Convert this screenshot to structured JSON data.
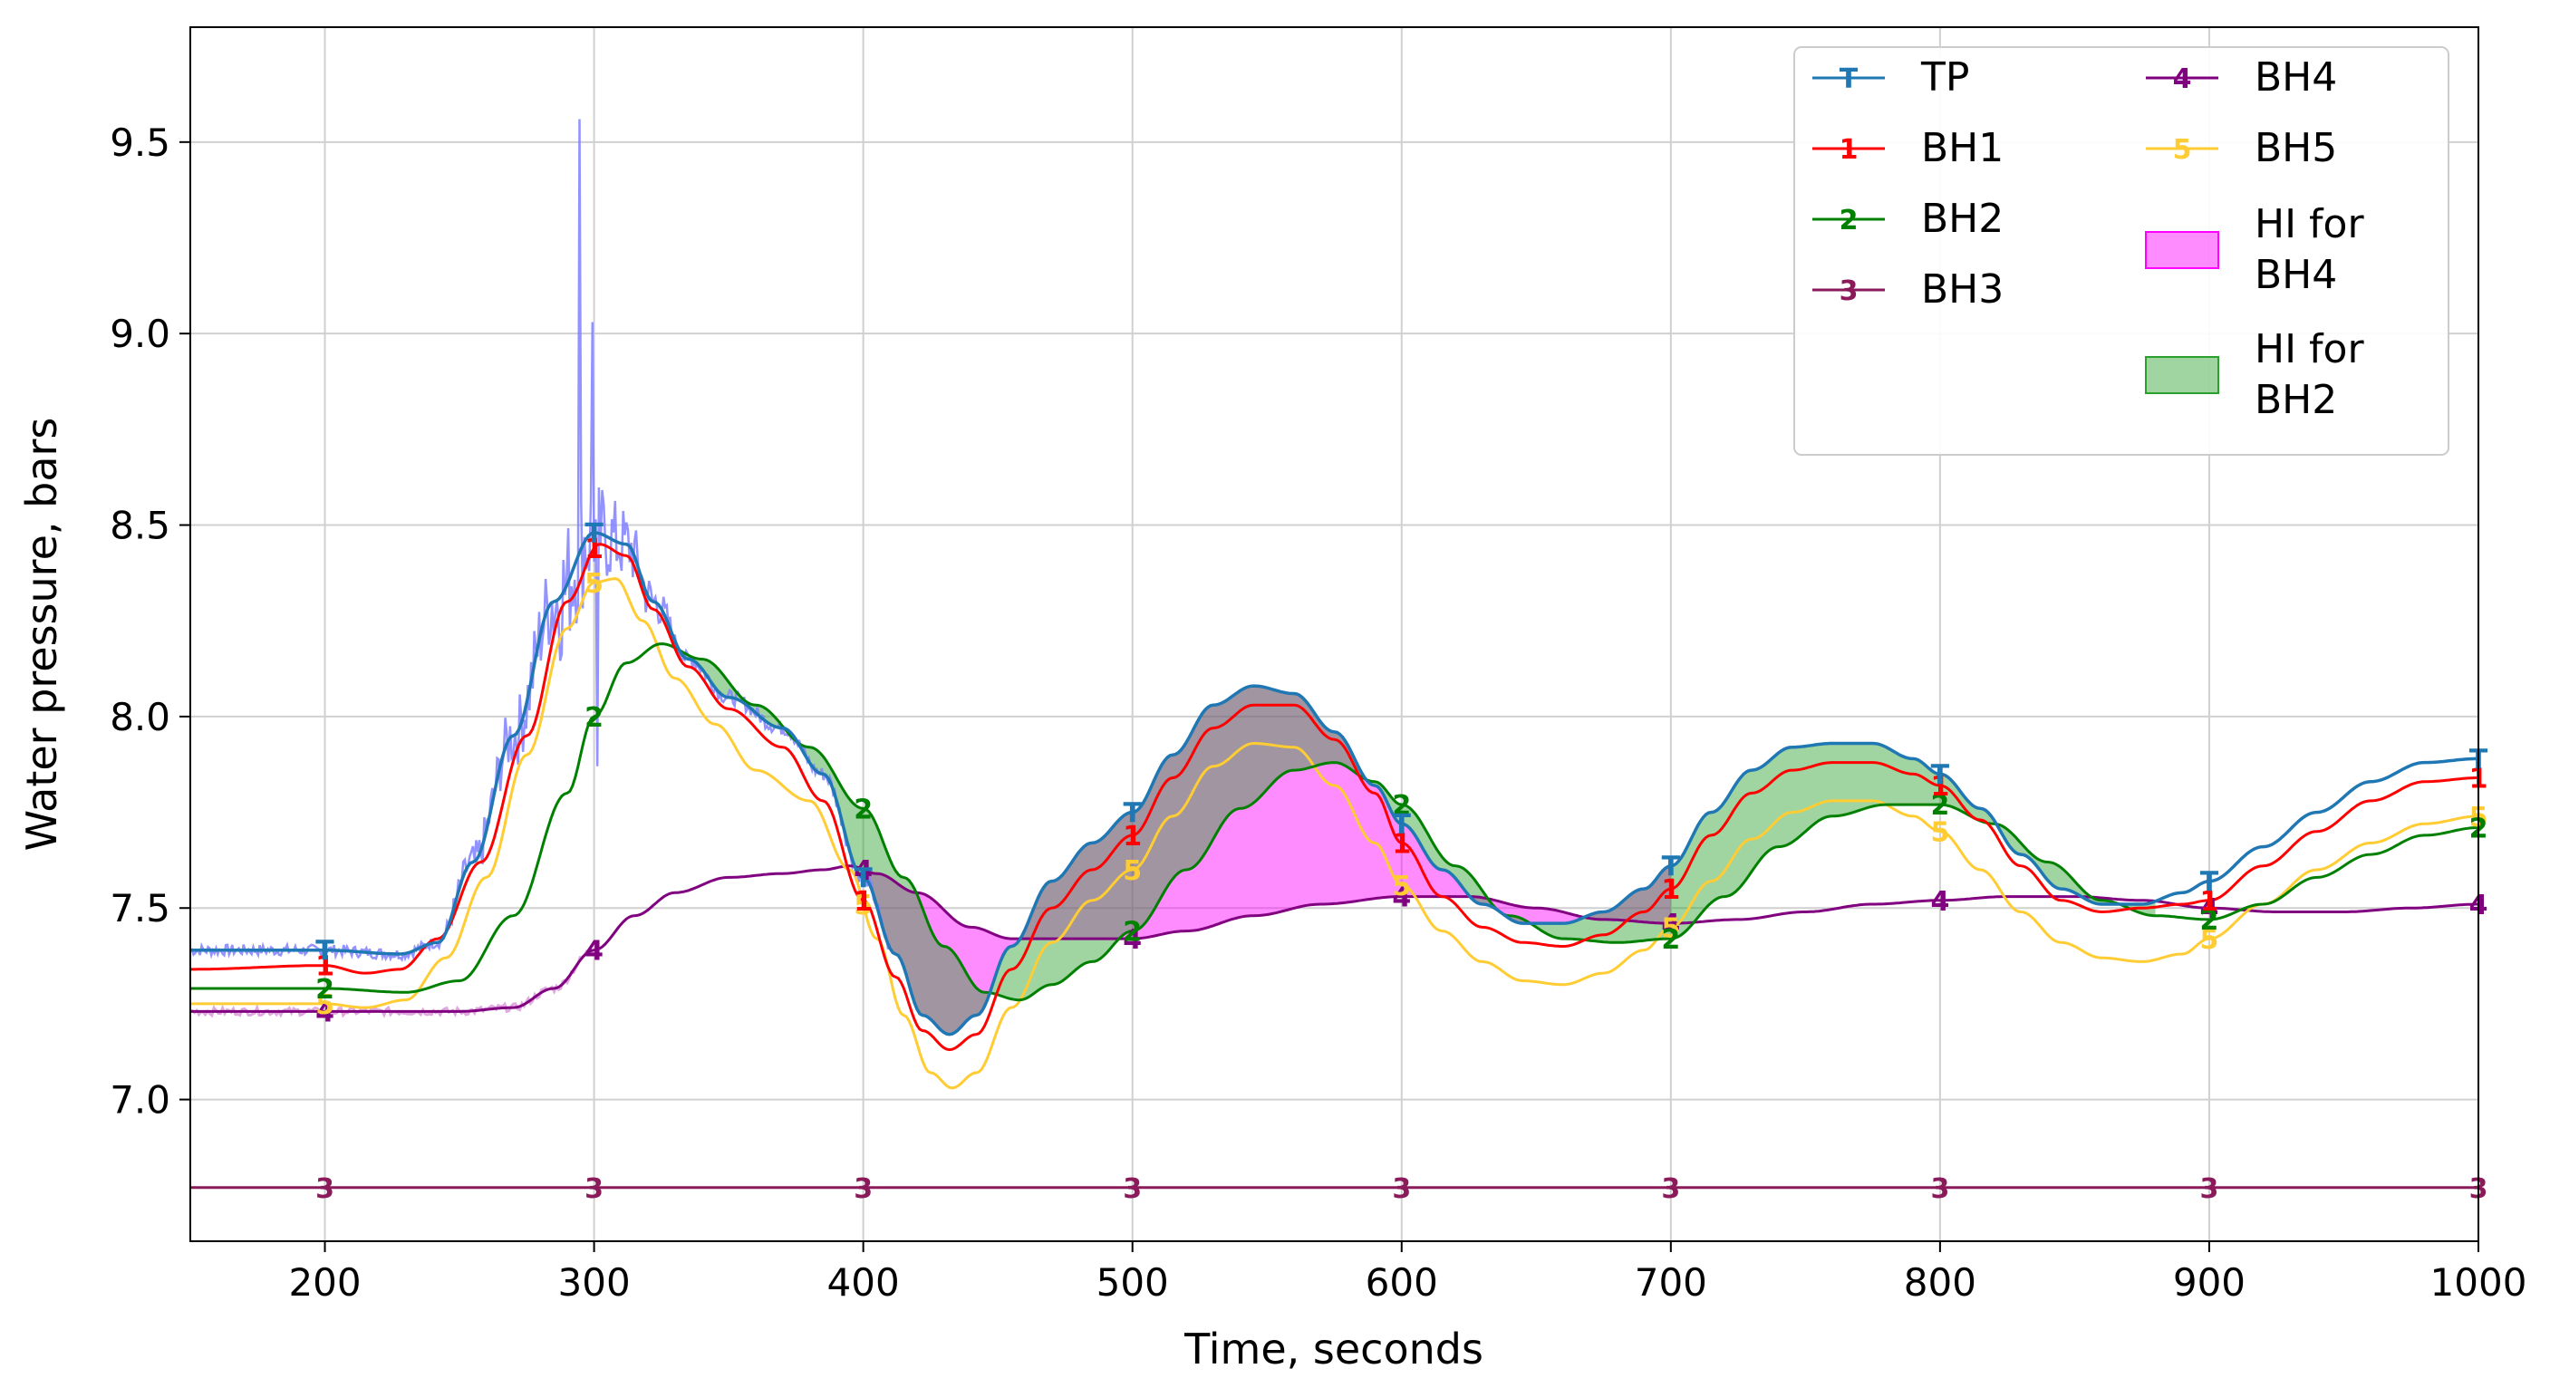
{
  "chart_data": {
    "type": "line",
    "title": "",
    "xlabel": "Time, seconds",
    "ylabel": "Water pressure, bars",
    "xlim": [
      150,
      1000
    ],
    "ylim": [
      6.63,
      9.8
    ],
    "grid": true,
    "legend_position": "top-right",
    "x_ticks": [
      200,
      300,
      400,
      500,
      600,
      700,
      800,
      900,
      1000
    ],
    "x_tick_labels": [
      "200",
      "300",
      "400",
      "500",
      "600",
      "700",
      "800",
      "900",
      "1000"
    ],
    "y_ticks": [
      7.0,
      7.5,
      8.0,
      8.5,
      9.0,
      9.5
    ],
    "y_tick_labels": [
      "7.0",
      "7.5",
      "8.0",
      "8.5",
      "9.0",
      "9.5"
    ],
    "series": [
      {
        "name": "TP",
        "marker": "T",
        "color": "#1f77b4",
        "points": [
          [
            150,
            7.39
          ],
          [
            200,
            7.39
          ],
          [
            228,
            7.38
          ],
          [
            242,
            7.41
          ],
          [
            255,
            7.62
          ],
          [
            270,
            7.95
          ],
          [
            285,
            8.3
          ],
          [
            300,
            8.48
          ],
          [
            312,
            8.45
          ],
          [
            322,
            8.3
          ],
          [
            335,
            8.15
          ],
          [
            350,
            8.05
          ],
          [
            370,
            7.97
          ],
          [
            385,
            7.85
          ],
          [
            400,
            7.58
          ],
          [
            412,
            7.38
          ],
          [
            422,
            7.22
          ],
          [
            432,
            7.17
          ],
          [
            442,
            7.22
          ],
          [
            455,
            7.4
          ],
          [
            470,
            7.57
          ],
          [
            485,
            7.67
          ],
          [
            500,
            7.75
          ],
          [
            515,
            7.9
          ],
          [
            530,
            8.03
          ],
          [
            545,
            8.08
          ],
          [
            560,
            8.06
          ],
          [
            575,
            7.96
          ],
          [
            590,
            7.82
          ],
          [
            600,
            7.72
          ],
          [
            615,
            7.6
          ],
          [
            630,
            7.51
          ],
          [
            645,
            7.46
          ],
          [
            660,
            7.46
          ],
          [
            675,
            7.49
          ],
          [
            690,
            7.55
          ],
          [
            700,
            7.61
          ],
          [
            715,
            7.75
          ],
          [
            730,
            7.86
          ],
          [
            745,
            7.92
          ],
          [
            760,
            7.93
          ],
          [
            775,
            7.93
          ],
          [
            790,
            7.89
          ],
          [
            800,
            7.85
          ],
          [
            815,
            7.76
          ],
          [
            830,
            7.64
          ],
          [
            845,
            7.55
          ],
          [
            860,
            7.51
          ],
          [
            875,
            7.51
          ],
          [
            890,
            7.54
          ],
          [
            900,
            7.57
          ],
          [
            920,
            7.66
          ],
          [
            940,
            7.75
          ],
          [
            960,
            7.83
          ],
          [
            980,
            7.88
          ],
          [
            1000,
            7.89
          ]
        ]
      },
      {
        "name": "BH1",
        "marker": "1",
        "color": "#ff0000",
        "points": [
          [
            150,
            7.34
          ],
          [
            200,
            7.35
          ],
          [
            215,
            7.33
          ],
          [
            228,
            7.34
          ],
          [
            242,
            7.42
          ],
          [
            258,
            7.62
          ],
          [
            275,
            7.95
          ],
          [
            290,
            8.3
          ],
          [
            302,
            8.45
          ],
          [
            312,
            8.42
          ],
          [
            322,
            8.28
          ],
          [
            335,
            8.13
          ],
          [
            350,
            8.02
          ],
          [
            370,
            7.92
          ],
          [
            385,
            7.78
          ],
          [
            400,
            7.52
          ],
          [
            412,
            7.32
          ],
          [
            422,
            7.18
          ],
          [
            432,
            7.13
          ],
          [
            442,
            7.17
          ],
          [
            455,
            7.34
          ],
          [
            470,
            7.5
          ],
          [
            485,
            7.6
          ],
          [
            500,
            7.69
          ],
          [
            515,
            7.84
          ],
          [
            530,
            7.97
          ],
          [
            545,
            8.03
          ],
          [
            560,
            8.03
          ],
          [
            575,
            7.94
          ],
          [
            590,
            7.8
          ],
          [
            600,
            7.67
          ],
          [
            615,
            7.53
          ],
          [
            630,
            7.45
          ],
          [
            645,
            7.41
          ],
          [
            660,
            7.4
          ],
          [
            675,
            7.43
          ],
          [
            690,
            7.49
          ],
          [
            700,
            7.55
          ],
          [
            715,
            7.69
          ],
          [
            730,
            7.8
          ],
          [
            745,
            7.86
          ],
          [
            760,
            7.88
          ],
          [
            775,
            7.88
          ],
          [
            790,
            7.85
          ],
          [
            800,
            7.82
          ],
          [
            815,
            7.73
          ],
          [
            830,
            7.61
          ],
          [
            845,
            7.52
          ],
          [
            860,
            7.49
          ],
          [
            875,
            7.5
          ],
          [
            890,
            7.51
          ],
          [
            900,
            7.52
          ],
          [
            920,
            7.61
          ],
          [
            940,
            7.7
          ],
          [
            960,
            7.78
          ],
          [
            980,
            7.83
          ],
          [
            1000,
            7.84
          ]
        ]
      },
      {
        "name": "BH2",
        "marker": "2",
        "color": "#008000",
        "points": [
          [
            150,
            7.29
          ],
          [
            200,
            7.29
          ],
          [
            230,
            7.28
          ],
          [
            250,
            7.31
          ],
          [
            270,
            7.48
          ],
          [
            290,
            7.8
          ],
          [
            300,
            8.0
          ],
          [
            312,
            8.14
          ],
          [
            325,
            8.19
          ],
          [
            340,
            8.15
          ],
          [
            360,
            8.03
          ],
          [
            380,
            7.92
          ],
          [
            400,
            7.76
          ],
          [
            415,
            7.58
          ],
          [
            430,
            7.4
          ],
          [
            445,
            7.28
          ],
          [
            458,
            7.26
          ],
          [
            470,
            7.3
          ],
          [
            485,
            7.36
          ],
          [
            500,
            7.44
          ],
          [
            520,
            7.6
          ],
          [
            540,
            7.76
          ],
          [
            560,
            7.86
          ],
          [
            575,
            7.88
          ],
          [
            590,
            7.83
          ],
          [
            600,
            7.77
          ],
          [
            620,
            7.61
          ],
          [
            640,
            7.48
          ],
          [
            660,
            7.42
          ],
          [
            680,
            7.41
          ],
          [
            700,
            7.42
          ],
          [
            720,
            7.53
          ],
          [
            740,
            7.66
          ],
          [
            760,
            7.74
          ],
          [
            780,
            7.77
          ],
          [
            800,
            7.77
          ],
          [
            820,
            7.72
          ],
          [
            840,
            7.62
          ],
          [
            860,
            7.52
          ],
          [
            880,
            7.48
          ],
          [
            900,
            7.47
          ],
          [
            920,
            7.51
          ],
          [
            940,
            7.58
          ],
          [
            960,
            7.64
          ],
          [
            980,
            7.69
          ],
          [
            1000,
            7.71
          ]
        ]
      },
      {
        "name": "BH3",
        "marker": "3",
        "color": "#8b1a5a",
        "points": [
          [
            150,
            6.77
          ],
          [
            1000,
            6.77
          ]
        ]
      },
      {
        "name": "BH4",
        "marker": "4",
        "color": "#800080",
        "points": [
          [
            150,
            7.23
          ],
          [
            200,
            7.23
          ],
          [
            250,
            7.23
          ],
          [
            270,
            7.24
          ],
          [
            285,
            7.29
          ],
          [
            300,
            7.39
          ],
          [
            315,
            7.48
          ],
          [
            330,
            7.54
          ],
          [
            350,
            7.58
          ],
          [
            370,
            7.59
          ],
          [
            385,
            7.6
          ],
          [
            395,
            7.61
          ],
          [
            405,
            7.59
          ],
          [
            420,
            7.54
          ],
          [
            440,
            7.45
          ],
          [
            455,
            7.42
          ],
          [
            470,
            7.42
          ],
          [
            500,
            7.42
          ],
          [
            520,
            7.44
          ],
          [
            545,
            7.48
          ],
          [
            570,
            7.51
          ],
          [
            600,
            7.53
          ],
          [
            625,
            7.53
          ],
          [
            650,
            7.5
          ],
          [
            675,
            7.47
          ],
          [
            700,
            7.46
          ],
          [
            725,
            7.47
          ],
          [
            750,
            7.49
          ],
          [
            775,
            7.51
          ],
          [
            800,
            7.52
          ],
          [
            825,
            7.53
          ],
          [
            850,
            7.53
          ],
          [
            875,
            7.52
          ],
          [
            900,
            7.5
          ],
          [
            925,
            7.49
          ],
          [
            950,
            7.49
          ],
          [
            975,
            7.5
          ],
          [
            1000,
            7.51
          ]
        ]
      },
      {
        "name": "BH5",
        "marker": "5",
        "color": "#ffcc33",
        "points": [
          [
            150,
            7.25
          ],
          [
            200,
            7.25
          ],
          [
            215,
            7.24
          ],
          [
            230,
            7.26
          ],
          [
            245,
            7.37
          ],
          [
            260,
            7.58
          ],
          [
            275,
            7.9
          ],
          [
            290,
            8.23
          ],
          [
            300,
            8.35
          ],
          [
            308,
            8.36
          ],
          [
            318,
            8.25
          ],
          [
            330,
            8.1
          ],
          [
            345,
            7.98
          ],
          [
            360,
            7.86
          ],
          [
            380,
            7.78
          ],
          [
            395,
            7.6
          ],
          [
            405,
            7.42
          ],
          [
            415,
            7.22
          ],
          [
            425,
            7.07
          ],
          [
            433,
            7.03
          ],
          [
            442,
            7.07
          ],
          [
            455,
            7.24
          ],
          [
            470,
            7.41
          ],
          [
            485,
            7.52
          ],
          [
            500,
            7.6
          ],
          [
            515,
            7.74
          ],
          [
            530,
            7.87
          ],
          [
            545,
            7.93
          ],
          [
            560,
            7.92
          ],
          [
            575,
            7.82
          ],
          [
            590,
            7.67
          ],
          [
            600,
            7.56
          ],
          [
            615,
            7.44
          ],
          [
            630,
            7.36
          ],
          [
            645,
            7.31
          ],
          [
            660,
            7.3
          ],
          [
            675,
            7.33
          ],
          [
            690,
            7.39
          ],
          [
            700,
            7.45
          ],
          [
            715,
            7.57
          ],
          [
            730,
            7.68
          ],
          [
            745,
            7.75
          ],
          [
            760,
            7.78
          ],
          [
            775,
            7.78
          ],
          [
            790,
            7.74
          ],
          [
            800,
            7.7
          ],
          [
            815,
            7.6
          ],
          [
            830,
            7.49
          ],
          [
            845,
            7.41
          ],
          [
            860,
            7.37
          ],
          [
            875,
            7.36
          ],
          [
            890,
            7.38
          ],
          [
            900,
            7.42
          ],
          [
            920,
            7.51
          ],
          [
            940,
            7.6
          ],
          [
            960,
            7.67
          ],
          [
            980,
            7.72
          ],
          [
            1000,
            7.74
          ]
        ]
      }
    ],
    "raw_signals": [
      {
        "name": "TP raw",
        "color": "#8080ff"
      },
      {
        "name": "BH4 raw",
        "color": "#dda0dd"
      }
    ],
    "filled_areas": [
      {
        "name": "HI for BH4",
        "color": "#ff00ff",
        "between": [
          "TP",
          "BH4"
        ],
        "x_range": [
          400,
          700
        ]
      },
      {
        "name": "HI for BH2",
        "color": "#2ca02c",
        "between": [
          "TP",
          "BH2"
        ],
        "x_range": [
          330,
          880
        ]
      }
    ],
    "legend": [
      {
        "label": "TP",
        "type": "line",
        "series": "TP"
      },
      {
        "label": "BH1",
        "type": "line",
        "series": "BH1"
      },
      {
        "label": "BH2",
        "type": "line",
        "series": "BH2"
      },
      {
        "label": "BH3",
        "type": "line",
        "series": "BH3"
      },
      {
        "label": "BH4",
        "type": "line",
        "series": "BH4"
      },
      {
        "label": "BH5",
        "type": "line",
        "series": "BH5"
      },
      {
        "label": "HI for BH4",
        "type": "patch",
        "color": "#ff00ff"
      },
      {
        "label": "HI for BH2",
        "type": "patch",
        "color": "#2ca02c"
      }
    ]
  }
}
